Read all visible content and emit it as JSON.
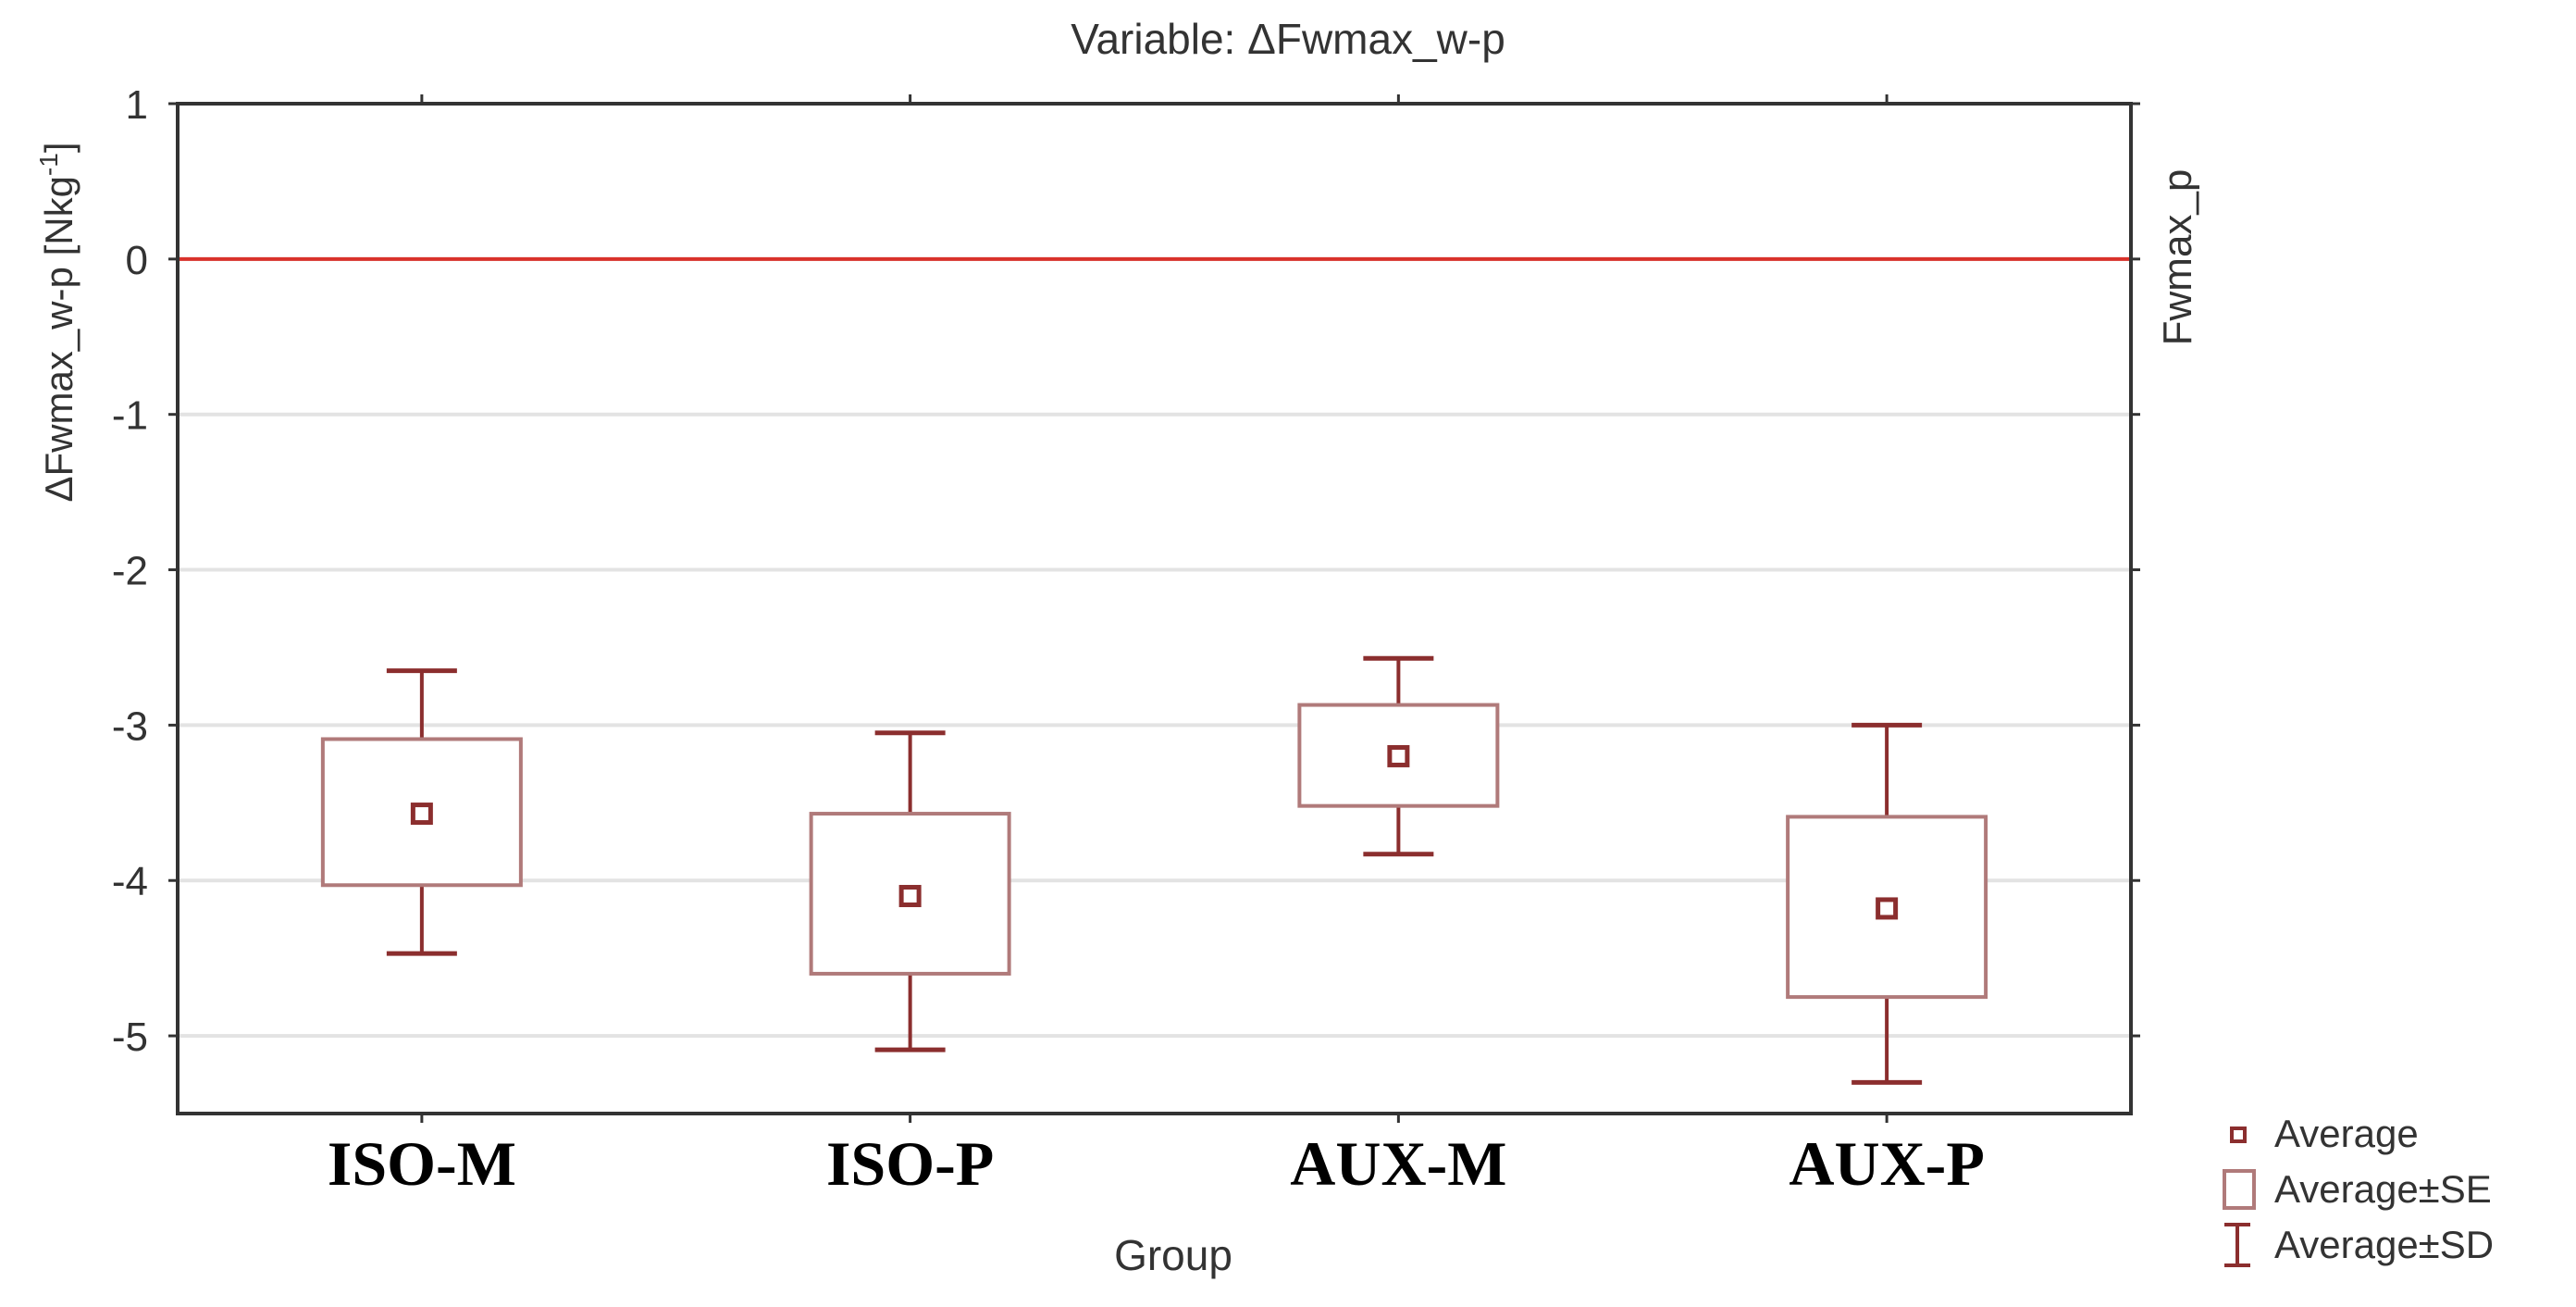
{
  "chart_data": {
    "type": "box",
    "title": "Variable:  ΔFwmax_w-p",
    "xlabel": "Group",
    "ylabel": "ΔFwmax_w-p [Nkg",
    "ylabel_sup": "-1",
    "ylabel_suffix": "]",
    "right_label": "Fwmax_p",
    "categories": [
      "ISO-M",
      "ISO-P",
      "AUX-M",
      "AUX-P"
    ],
    "ylim": [
      -5.5,
      1
    ],
    "yticks": [
      1,
      0,
      -1,
      -2,
      -3,
      -4,
      -5
    ],
    "ytick_labels": [
      "1",
      "0",
      "-1",
      "-2",
      "-3",
      "-4",
      "-5"
    ],
    "reference_line": 0,
    "grid": true,
    "legend_position": "bottom-right",
    "legend": [
      "Average",
      "Average±SE",
      "Average±SD"
    ],
    "series": [
      {
        "category": "ISO-M",
        "average": -3.57,
        "se_low": -4.03,
        "se_high": -3.09,
        "sd_low": -4.47,
        "sd_high": -2.65
      },
      {
        "category": "ISO-P",
        "average": -4.1,
        "se_low": -4.6,
        "se_high": -3.57,
        "sd_low": -5.09,
        "sd_high": -3.05
      },
      {
        "category": "AUX-M",
        "average": -3.2,
        "se_low": -3.52,
        "se_high": -2.87,
        "sd_low": -3.83,
        "sd_high": -2.57
      },
      {
        "category": "AUX-P",
        "average": -4.18,
        "se_low": -4.75,
        "se_high": -3.59,
        "sd_low": -5.3,
        "sd_high": -3.0
      }
    ],
    "colors": {
      "marker": "#8b2e2e",
      "box": "#b07a7a",
      "whisker": "#8b2e2e",
      "reference_line": "#d9322b",
      "grid": "#e3e3e3",
      "axis": "#333333",
      "text": "#333333"
    }
  }
}
